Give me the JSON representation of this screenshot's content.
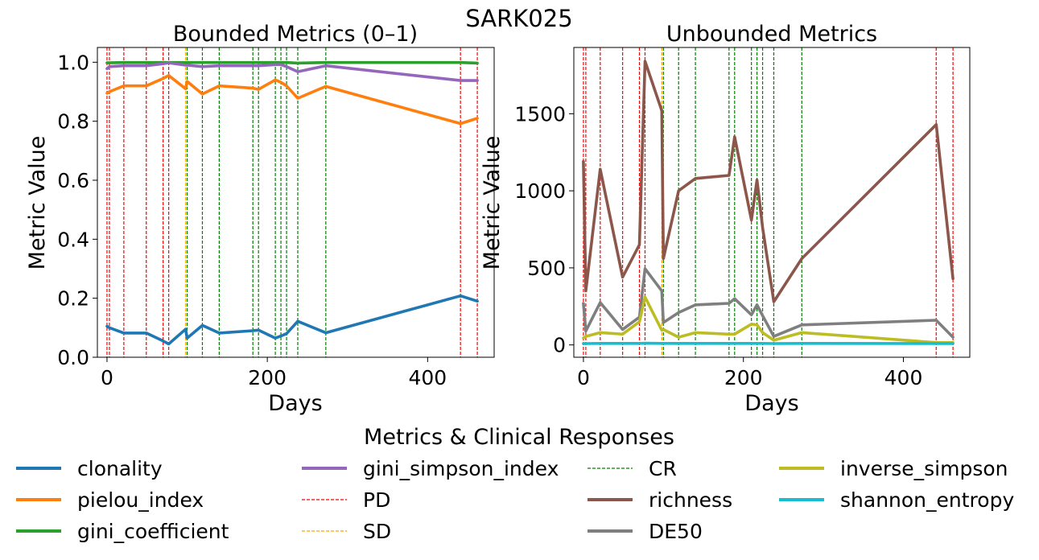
{
  "suptitle": "SARK025",
  "legend_title": "Metrics & Clinical Responses",
  "legend_items": [
    {
      "label": "clonality",
      "kind": "line",
      "color": "#1f77b4"
    },
    {
      "label": "pielou_index",
      "kind": "line",
      "color": "#ff7f0e"
    },
    {
      "label": "gini_coefficient",
      "kind": "line",
      "color": "#2ca02c"
    },
    {
      "label": "gini_simpson_index",
      "kind": "line",
      "color": "#9467bd"
    },
    {
      "label": "PD",
      "kind": "dashed",
      "color": "#ff0000"
    },
    {
      "label": "SD",
      "kind": "dashed",
      "color": "#ffa500"
    },
    {
      "label": "CR",
      "kind": "dashed",
      "color": "#008000"
    },
    {
      "label": "richness",
      "kind": "line",
      "color": "#8c564b"
    },
    {
      "label": "DE50",
      "kind": "line",
      "color": "#7f7f7f"
    },
    {
      "label": "inverse_simpson",
      "kind": "line",
      "color": "#bcbd22"
    },
    {
      "label": "shannon_entropy",
      "kind": "line",
      "color": "#17becf"
    }
  ],
  "chart_data": [
    {
      "type": "line",
      "title": "Bounded Metrics (0–1)",
      "xlabel": "Days",
      "ylabel": "Metric Value",
      "xlim": [
        -12,
        483
      ],
      "ylim": [
        0,
        1.05
      ],
      "xticks": [
        0,
        200,
        400
      ],
      "yticks": [
        0.0,
        0.2,
        0.4,
        0.6,
        0.8,
        1.0
      ],
      "ytick_labels": [
        "0.0",
        "0.2",
        "0.4",
        "0.6",
        "0.8",
        "1.0"
      ],
      "x": [
        0,
        3,
        21,
        49,
        70,
        77,
        98,
        100,
        119,
        140,
        182,
        189,
        210,
        217,
        224,
        238,
        273,
        441,
        462
      ],
      "series": [
        {
          "name": "clonality",
          "color": "#1f77b4",
          "values": [
            0.105,
            0.1,
            0.082,
            0.082,
            0.055,
            0.045,
            0.095,
            0.065,
            0.108,
            0.082,
            0.09,
            0.092,
            0.065,
            0.072,
            0.08,
            0.122,
            0.083,
            0.208,
            0.19
          ]
        },
        {
          "name": "pielou_index",
          "color": "#ff7f0e",
          "values": [
            0.895,
            0.9,
            0.92,
            0.92,
            0.945,
            0.955,
            0.91,
            0.935,
            0.892,
            0.92,
            0.912,
            0.908,
            0.94,
            0.932,
            0.92,
            0.878,
            0.918,
            0.792,
            0.81
          ]
        },
        {
          "name": "gini_coefficient",
          "color": "#2ca02c",
          "values": [
            0.998,
            0.998,
            0.999,
            0.999,
            0.999,
            0.999,
            0.999,
            0.999,
            0.999,
            0.999,
            0.999,
            0.999,
            0.999,
            0.999,
            0.999,
            0.997,
            0.999,
            0.999,
            0.997
          ]
        },
        {
          "name": "gini_simpson_index",
          "color": "#9467bd",
          "values": [
            0.978,
            0.985,
            0.988,
            0.988,
            0.995,
            0.998,
            0.99,
            0.99,
            0.985,
            0.988,
            0.988,
            0.988,
            0.992,
            0.992,
            0.985,
            0.968,
            0.988,
            0.938,
            0.938
          ]
        }
      ],
      "responses": [
        {
          "type": "PD",
          "day": 0
        },
        {
          "type": "PD",
          "day": 3
        },
        {
          "type": "PD",
          "day": 21
        },
        {
          "type": "PD",
          "day": 49
        },
        {
          "type": "PD",
          "day": 70
        },
        {
          "type": "PD",
          "day": 77
        },
        {
          "type": "SD",
          "day": 98
        },
        {
          "type": "CR",
          "day": 100
        },
        {
          "type": "CR",
          "day": 119
        },
        {
          "type": "CR",
          "day": 140
        },
        {
          "type": "CR",
          "day": 182
        },
        {
          "type": "CR",
          "day": 189
        },
        {
          "type": "CR",
          "day": 210
        },
        {
          "type": "CR",
          "day": 217
        },
        {
          "type": "CR",
          "day": 224
        },
        {
          "type": "CR",
          "day": 238
        },
        {
          "type": "CR",
          "day": 273
        },
        {
          "type": "PD",
          "day": 441
        },
        {
          "type": "PD",
          "day": 462
        }
      ]
    },
    {
      "type": "line",
      "title": "Unbounded Metrics",
      "xlabel": "Days",
      "ylabel": "Metric Value",
      "xlim": [
        -12,
        483
      ],
      "ylim": [
        -80,
        1930
      ],
      "xticks": [
        0,
        200,
        400
      ],
      "yticks": [
        0,
        500,
        1000,
        1500
      ],
      "ytick_labels": [
        "0",
        "500",
        "1000",
        "1500"
      ],
      "x": [
        0,
        3,
        21,
        49,
        70,
        77,
        98,
        100,
        119,
        140,
        182,
        189,
        210,
        217,
        224,
        238,
        273,
        441,
        462
      ],
      "series": [
        {
          "name": "richness",
          "color": "#8c564b",
          "values": [
            1190,
            350,
            1140,
            440,
            650,
            1840,
            1520,
            560,
            1000,
            1080,
            1100,
            1350,
            810,
            1070,
            760,
            280,
            560,
            1430,
            430
          ]
        },
        {
          "name": "DE50",
          "color": "#7f7f7f",
          "values": [
            270,
            90,
            275,
            100,
            180,
            495,
            350,
            145,
            210,
            260,
            270,
            300,
            195,
            260,
            190,
            55,
            130,
            160,
            50
          ]
        },
        {
          "name": "inverse_simpson",
          "color": "#bcbd22",
          "values": [
            45,
            55,
            80,
            70,
            150,
            310,
            95,
            100,
            50,
            80,
            70,
            70,
            135,
            130,
            80,
            30,
            80,
            15,
            15
          ]
        },
        {
          "name": "shannon_entropy",
          "color": "#17becf",
          "values": [
            9,
            9,
            10,
            10,
            10,
            11,
            10,
            10,
            10,
            10,
            10,
            10,
            10,
            10,
            10,
            9,
            10,
            9,
            9
          ]
        }
      ],
      "responses": [
        {
          "type": "PD",
          "day": 0
        },
        {
          "type": "PD",
          "day": 3
        },
        {
          "type": "PD",
          "day": 21
        },
        {
          "type": "PD",
          "day": 49
        },
        {
          "type": "PD",
          "day": 70
        },
        {
          "type": "PD",
          "day": 77
        },
        {
          "type": "SD",
          "day": 98
        },
        {
          "type": "CR",
          "day": 100
        },
        {
          "type": "CR",
          "day": 119
        },
        {
          "type": "CR",
          "day": 140
        },
        {
          "type": "CR",
          "day": 182
        },
        {
          "type": "CR",
          "day": 189
        },
        {
          "type": "CR",
          "day": 210
        },
        {
          "type": "CR",
          "day": 217
        },
        {
          "type": "CR",
          "day": 224
        },
        {
          "type": "CR",
          "day": 238
        },
        {
          "type": "CR",
          "day": 273
        },
        {
          "type": "PD",
          "day": 441
        },
        {
          "type": "PD",
          "day": 462
        }
      ]
    }
  ]
}
